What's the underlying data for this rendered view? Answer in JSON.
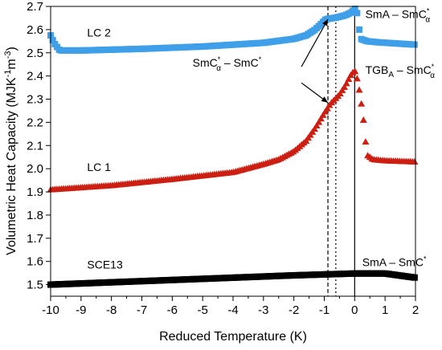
{
  "chart_data": {
    "type": "scatter",
    "xlabel": "Reduced Temperature (K)",
    "ylabel": {
      "base": "Volumetric Heat Capacity (MJK",
      "sup1": "-1",
      "mid": "m",
      "sup2": "-3",
      "end": ")"
    },
    "xlim": [
      -10,
      2
    ],
    "ylim": [
      1.45,
      2.7
    ],
    "x_ticks": [
      "-10",
      "-9",
      "-8",
      "-7",
      "-6",
      "-5",
      "-4",
      "-3",
      "-2",
      "-1",
      "0",
      "1",
      "2"
    ],
    "y_ticks": [
      "1.5",
      "1.6",
      "1.7",
      "1.8",
      "1.9",
      "2.0",
      "2.1",
      "2.2",
      "2.3",
      "2.4",
      "2.5",
      "2.6",
      "2.7"
    ],
    "grid": false,
    "series": [
      {
        "name": "LC 2",
        "color": "#3f9fe8",
        "marker": "square",
        "knots": [
          [
            -10,
            2.575
          ],
          [
            -9.95,
            2.56
          ],
          [
            -9.85,
            2.535
          ],
          [
            -9.7,
            2.51
          ],
          [
            -9,
            2.51
          ],
          [
            -7,
            2.517
          ],
          [
            -5,
            2.527
          ],
          [
            -3,
            2.543
          ],
          [
            -2,
            2.56
          ],
          [
            -1.6,
            2.575
          ],
          [
            -1.3,
            2.6
          ],
          [
            -1.1,
            2.625
          ],
          [
            -0.95,
            2.645
          ],
          [
            -0.6,
            2.652
          ],
          [
            -0.3,
            2.662
          ],
          [
            -0.1,
            2.675
          ],
          [
            0,
            2.69
          ],
          [
            0.05,
            2.688
          ],
          [
            0.1,
            2.66
          ],
          [
            0.15,
            2.6
          ],
          [
            0.2,
            2.56
          ],
          [
            0.4,
            2.55
          ],
          [
            0.8,
            2.545
          ],
          [
            2,
            2.535
          ]
        ]
      },
      {
        "name": "LC 1",
        "color": "#cc1f12",
        "marker": "triangle",
        "knots": [
          [
            -10,
            1.91
          ],
          [
            -8,
            1.928
          ],
          [
            -6,
            1.955
          ],
          [
            -5,
            1.97
          ],
          [
            -4,
            1.985
          ],
          [
            -3,
            2.02
          ],
          [
            -2.5,
            2.04
          ],
          [
            -2,
            2.075
          ],
          [
            -1.6,
            2.12
          ],
          [
            -1.3,
            2.175
          ],
          [
            -1,
            2.24
          ],
          [
            -0.8,
            2.28
          ],
          [
            -0.5,
            2.32
          ],
          [
            -0.3,
            2.36
          ],
          [
            -0.15,
            2.4
          ],
          [
            0,
            2.425
          ],
          [
            0.1,
            2.38
          ],
          [
            0.2,
            2.3
          ],
          [
            0.3,
            2.2
          ],
          [
            0.4,
            2.06
          ],
          [
            0.6,
            2.04
          ],
          [
            1,
            2.035
          ],
          [
            2,
            2.03
          ]
        ]
      },
      {
        "name": "SCE13",
        "color": "#000000",
        "marker": "square",
        "knots": [
          [
            -10,
            1.5
          ],
          [
            -8,
            1.51
          ],
          [
            -6,
            1.52
          ],
          [
            -4,
            1.53
          ],
          [
            -2,
            1.54
          ],
          [
            0,
            1.548
          ],
          [
            1,
            1.548
          ],
          [
            2,
            1.53
          ]
        ]
      }
    ],
    "vertical_lines": [
      {
        "x": -0.88,
        "style": "dashed"
      },
      {
        "x": -0.62,
        "style": "dotted"
      },
      {
        "x": 0,
        "style": "solid"
      }
    ],
    "annotations": [
      {
        "key": "lc2",
        "text": "LC 2",
        "x": -8.8,
        "y": 2.57
      },
      {
        "key": "lc1",
        "text": "LC 1",
        "x": -8.8,
        "y": 1.99
      },
      {
        "key": "sce13",
        "text": "SCE13",
        "x": -8.8,
        "y": 1.57
      },
      {
        "key": "smcalpha_smc",
        "x": -4.2,
        "y": 2.44
      },
      {
        "key": "sma_smcalpha",
        "x": 0.35,
        "y": 2.65
      },
      {
        "key": "tgba_smcalpha",
        "x": 0.35,
        "y": 2.41
      },
      {
        "key": "sma_smc",
        "x": 0.25,
        "y": 1.58
      }
    ],
    "annotation_text": {
      "smcalpha_smc": {
        "a": "SmC",
        "b": "α",
        "c": " – SmC"
      },
      "sma_smcalpha": {
        "a": "SmA – SmC",
        "b": "α"
      },
      "tgba_smcalpha": {
        "a": "TGB",
        "b": "A",
        "c": " – SmC",
        "d": "α"
      },
      "sma_smc": {
        "a": "SmA – SmC"
      }
    },
    "arrows": [
      {
        "from": [
          -1.75,
          2.44
        ],
        "to": [
          -0.88,
          2.645
        ]
      },
      {
        "from": [
          -1.75,
          2.37
        ],
        "to": [
          -0.88,
          2.285
        ]
      }
    ]
  }
}
